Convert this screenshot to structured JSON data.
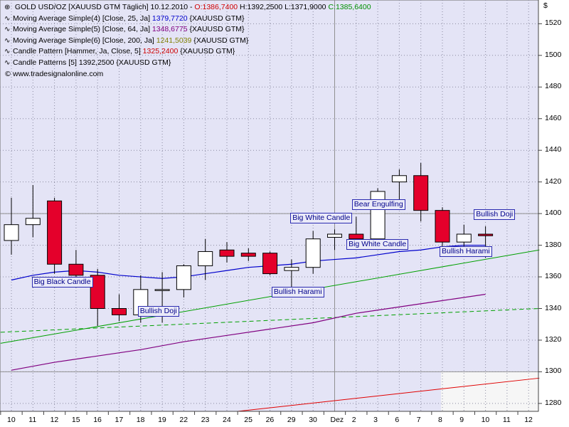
{
  "header": {
    "title": "GOLD USD/OZ [XAUUSD GTM  Täglich] 10.12.2010 - ",
    "ohlc": {
      "open_label": "O:1386,7400",
      "high_label": "H:1392,2500",
      "low_label": "L:1371,9000",
      "close_label": "C:1385,6400"
    },
    "currency": "$"
  },
  "legend": [
    {
      "label": "Moving Average Simple(4) [Close, 25, Ja] ",
      "value": "1379,7720",
      "suffix": " {XAUUSD GTM}",
      "color": "#0000cc"
    },
    {
      "label": "Moving Average Simple(5) [Close, 64, Ja] ",
      "value": "1348,6775",
      "suffix": " {XAUUSD GTM}",
      "color": "#800080"
    },
    {
      "label": "Moving Average Simple(6) [Close, 200, Ja] ",
      "value": "1241,5039",
      "suffix": " {XAUUSD GTM}",
      "color": "#808000"
    },
    {
      "label": "Candle Pattern [Hammer, Ja, Close, 5] ",
      "value": "1325,2400",
      "suffix": " {XAUUSD GTM}",
      "color": "#cc0000"
    },
    {
      "label": "Candle Patterns [5] ",
      "value": "1392,2500",
      "suffix": " {XAUUSD GTM}",
      "color": "#000000"
    }
  ],
  "watermark": "www.tradesignalonline.com",
  "colors": {
    "background": "#e4e4f6",
    "bull_candle": "#ffffff",
    "bear_candle": "#e4002b",
    "ma25": "#0000cc",
    "ma64": "#800080",
    "trend_green": "#00a000",
    "trend_red": "#e00000"
  },
  "chart_data": {
    "type": "candlestick",
    "title": "GOLD USD/OZ",
    "ylim": [
      1275,
      1535
    ],
    "yticks": [
      "1280",
      "1300",
      "1320",
      "1340",
      "1360",
      "1380",
      "1400",
      "1420",
      "1440",
      "1460",
      "1480",
      "1500",
      "1520"
    ],
    "xlabels": [
      "10",
      "11",
      "12",
      "15",
      "16",
      "17",
      "18",
      "19",
      "22",
      "23",
      "24",
      "25",
      "26",
      "29",
      "30",
      "Dez",
      "2",
      "3",
      "6",
      "7",
      "8",
      "9",
      "10",
      "11",
      "12"
    ],
    "candles": [
      {
        "date": "10",
        "open": 1383,
        "high": 1410,
        "low": 1374,
        "close": 1393
      },
      {
        "date": "11",
        "open": 1393,
        "high": 1418,
        "low": 1385,
        "close": 1397
      },
      {
        "date": "12",
        "open": 1408,
        "high": 1410,
        "low": 1362,
        "close": 1368
      },
      {
        "date": "15",
        "open": 1368,
        "high": 1377,
        "low": 1360,
        "close": 1361
      },
      {
        "date": "16",
        "open": 1361,
        "high": 1365,
        "low": 1329,
        "close": 1340
      },
      {
        "date": "17",
        "open": 1340,
        "high": 1349,
        "low": 1332,
        "close": 1336
      },
      {
        "date": "18",
        "open": 1336,
        "high": 1361,
        "low": 1331,
        "close": 1352
      },
      {
        "date": "19",
        "open": 1352,
        "high": 1363,
        "low": 1331,
        "close": 1352
      },
      {
        "date": "22",
        "open": 1352,
        "high": 1368,
        "low": 1347,
        "close": 1367
      },
      {
        "date": "23",
        "open": 1367,
        "high": 1384,
        "low": 1358,
        "close": 1376
      },
      {
        "date": "24",
        "open": 1377,
        "high": 1382,
        "low": 1369,
        "close": 1373
      },
      {
        "date": "25",
        "open": 1375,
        "high": 1378,
        "low": 1370,
        "close": 1373
      },
      {
        "date": "26",
        "open": 1375,
        "high": 1376,
        "low": 1361,
        "close": 1362
      },
      {
        "date": "29",
        "open": 1364,
        "high": 1371,
        "low": 1352,
        "close": 1366
      },
      {
        "date": "30",
        "open": 1366,
        "high": 1389,
        "low": 1362,
        "close": 1384
      },
      {
        "date": "Dez",
        "open": 1385,
        "high": 1390,
        "low": 1377,
        "close": 1387
      },
      {
        "date": "2",
        "open": 1387,
        "high": 1398,
        "low": 1380,
        "close": 1384
      },
      {
        "date": "3",
        "open": 1384,
        "high": 1416,
        "low": 1383,
        "close": 1414
      },
      {
        "date": "6",
        "open": 1420,
        "high": 1428,
        "low": 1409,
        "close": 1424
      },
      {
        "date": "7",
        "open": 1424,
        "high": 1432,
        "low": 1395,
        "close": 1402
      },
      {
        "date": "8",
        "open": 1402,
        "high": 1404,
        "low": 1378,
        "close": 1382
      },
      {
        "date": "9",
        "open": 1382,
        "high": 1393,
        "low": 1379,
        "close": 1387
      },
      {
        "date": "10",
        "open": 1387,
        "high": 1392,
        "low": 1372,
        "close": 1386
      }
    ],
    "ma25": [
      [
        0,
        1358
      ],
      [
        1,
        1361
      ],
      [
        2,
        1363
      ],
      [
        3,
        1364
      ],
      [
        4,
        1363
      ],
      [
        5,
        1361
      ],
      [
        6,
        1360
      ],
      [
        7,
        1359
      ],
      [
        8,
        1360
      ],
      [
        9,
        1362
      ],
      [
        10,
        1364
      ],
      [
        11,
        1366
      ],
      [
        12,
        1367
      ],
      [
        13,
        1368
      ],
      [
        14,
        1370
      ],
      [
        15,
        1371
      ],
      [
        16,
        1372
      ],
      [
        17,
        1374
      ],
      [
        18,
        1376
      ],
      [
        19,
        1377
      ],
      [
        20,
        1379
      ],
      [
        21,
        1380
      ],
      [
        22,
        1380
      ]
    ],
    "ma64": [
      [
        0,
        1301
      ],
      [
        2,
        1306
      ],
      [
        4,
        1310
      ],
      [
        6,
        1314
      ],
      [
        8,
        1319
      ],
      [
        10,
        1323
      ],
      [
        12,
        1327
      ],
      [
        14,
        1331
      ],
      [
        16,
        1337
      ],
      [
        18,
        1341
      ],
      [
        20,
        1345
      ],
      [
        22,
        1349
      ]
    ],
    "trend_green_solid": [
      [
        -0.5,
        1318
      ],
      [
        24.5,
        1377
      ]
    ],
    "trend_green_dashed": [
      [
        -0.5,
        1325
      ],
      [
        24.5,
        1340
      ]
    ],
    "trend_red": [
      [
        10.5,
        1275
      ],
      [
        24.5,
        1296
      ]
    ],
    "annotations": [
      {
        "text": "Big Black Candle",
        "index": 2
      },
      {
        "text": "Bullish Doji",
        "index": 6
      },
      {
        "text": "Bullish Harami",
        "index": 13
      },
      {
        "text": "Big White Candle",
        "index": 14
      },
      {
        "text": "Bear Engulfing",
        "index": 16
      },
      {
        "text": "Big White Candle",
        "index": 17
      },
      {
        "text": "Bullish Harami",
        "index": 20
      },
      {
        "text": "Bullish Doji",
        "index": 21
      }
    ]
  }
}
